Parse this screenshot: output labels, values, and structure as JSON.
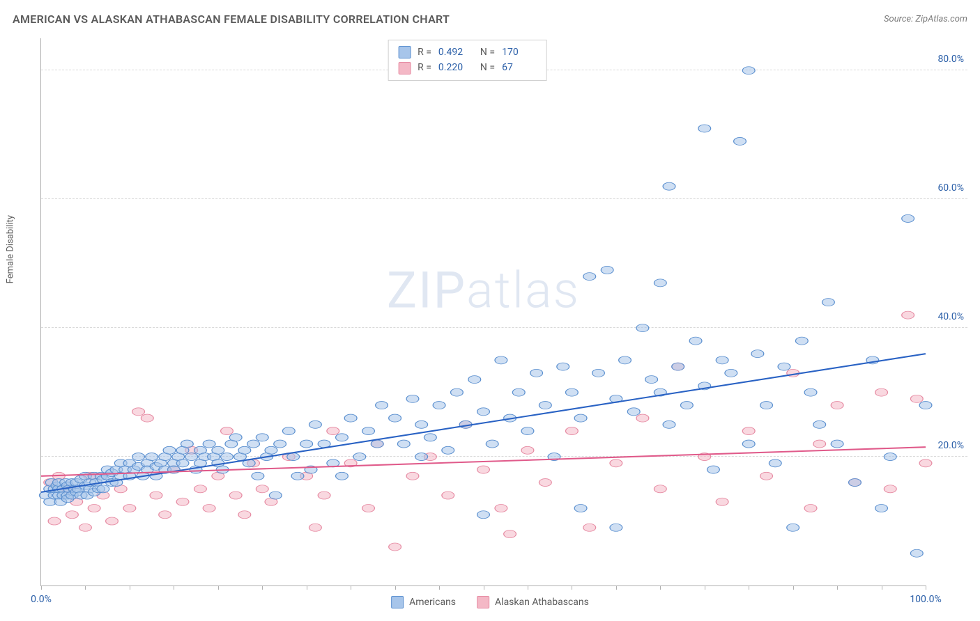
{
  "title": "AMERICAN VS ALASKAN ATHABASCAN FEMALE DISABILITY CORRELATION CHART",
  "source": "Source: ZipAtlas.com",
  "y_axis_label": "Female Disability",
  "watermark_a": "ZIP",
  "watermark_b": "atlas",
  "chart": {
    "type": "scatter",
    "xlim": [
      0,
      100
    ],
    "ylim": [
      0,
      85
    ],
    "x_ticks": [
      0,
      5,
      10,
      15,
      20,
      25,
      30,
      35,
      40,
      45,
      50,
      55,
      60,
      65,
      70,
      75,
      80,
      85,
      90,
      95,
      100
    ],
    "x_tick_labels": [
      {
        "pos": 0,
        "label": "0.0%"
      },
      {
        "pos": 100,
        "label": "100.0%"
      }
    ],
    "y_grid": [
      20,
      40,
      60,
      80
    ],
    "y_tick_labels": [
      {
        "pos": 20,
        "label": "20.0%"
      },
      {
        "pos": 40,
        "label": "40.0%"
      },
      {
        "pos": 60,
        "label": "60.0%"
      },
      {
        "pos": 80,
        "label": "80.0%"
      }
    ],
    "background_color": "#ffffff",
    "grid_color": "#d8d8d8",
    "axis_color": "#b0b0b0",
    "marker_radius": 7,
    "marker_opacity": 0.55,
    "line_width": 2,
    "series": [
      {
        "name": "Americans",
        "color_fill": "#a7c5ea",
        "color_stroke": "#5a8fcf",
        "line_color": "#2962c4",
        "R": "0.492",
        "N": "170",
        "trend": {
          "x1": 0,
          "y1": 14.5,
          "x2": 100,
          "y2": 36
        },
        "points": [
          [
            0.5,
            14
          ],
          [
            1,
            15
          ],
          [
            1,
            13
          ],
          [
            1.2,
            16
          ],
          [
            1.5,
            14
          ],
          [
            1.5,
            15
          ],
          [
            1.8,
            15.5
          ],
          [
            2,
            14
          ],
          [
            2,
            15
          ],
          [
            2,
            16
          ],
          [
            2.2,
            13
          ],
          [
            2.5,
            15
          ],
          [
            2.5,
            14
          ],
          [
            2.8,
            16
          ],
          [
            3,
            14
          ],
          [
            3,
            15.5
          ],
          [
            3,
            13.5
          ],
          [
            3.2,
            15
          ],
          [
            3.5,
            14
          ],
          [
            3.5,
            16
          ],
          [
            3.8,
            15
          ],
          [
            4,
            16
          ],
          [
            4,
            14.5
          ],
          [
            4.2,
            15
          ],
          [
            4.5,
            14
          ],
          [
            4.5,
            16.5
          ],
          [
            5,
            15.5
          ],
          [
            5,
            17
          ],
          [
            5.2,
            14
          ],
          [
            5.5,
            15
          ],
          [
            5.5,
            16
          ],
          [
            6,
            17
          ],
          [
            6,
            14.5
          ],
          [
            6.2,
            16
          ],
          [
            6.5,
            15
          ],
          [
            6.8,
            17
          ],
          [
            7,
            16.5
          ],
          [
            7,
            15
          ],
          [
            7.5,
            17
          ],
          [
            7.5,
            18
          ],
          [
            8,
            16
          ],
          [
            8,
            17.5
          ],
          [
            8.5,
            18
          ],
          [
            8.5,
            16
          ],
          [
            9,
            17
          ],
          [
            9,
            19
          ],
          [
            9.5,
            18
          ],
          [
            10,
            17
          ],
          [
            10,
            19
          ],
          [
            10.5,
            18
          ],
          [
            11,
            18.5
          ],
          [
            11,
            20
          ],
          [
            11.5,
            17
          ],
          [
            12,
            19
          ],
          [
            12,
            18
          ],
          [
            12.5,
            20
          ],
          [
            13,
            18.5
          ],
          [
            13,
            17
          ],
          [
            13.5,
            19
          ],
          [
            14,
            18
          ],
          [
            14,
            20
          ],
          [
            14.5,
            21
          ],
          [
            15,
            19
          ],
          [
            15,
            18
          ],
          [
            15.5,
            20
          ],
          [
            16,
            21
          ],
          [
            16,
            19
          ],
          [
            16.5,
            22
          ],
          [
            17,
            20
          ],
          [
            17.5,
            18
          ],
          [
            18,
            21
          ],
          [
            18,
            19
          ],
          [
            18.5,
            20
          ],
          [
            19,
            22
          ],
          [
            19.5,
            20
          ],
          [
            20,
            21
          ],
          [
            20,
            19
          ],
          [
            20.5,
            18
          ],
          [
            21,
            20
          ],
          [
            21.5,
            22
          ],
          [
            22,
            23
          ],
          [
            22.5,
            20
          ],
          [
            23,
            21
          ],
          [
            23.5,
            19
          ],
          [
            24,
            22
          ],
          [
            24.5,
            17
          ],
          [
            25,
            23
          ],
          [
            25.5,
            20
          ],
          [
            26,
            21
          ],
          [
            26.5,
            14
          ],
          [
            27,
            22
          ],
          [
            28,
            24
          ],
          [
            28.5,
            20
          ],
          [
            29,
            17
          ],
          [
            30,
            22
          ],
          [
            30.5,
            18
          ],
          [
            31,
            25
          ],
          [
            32,
            22
          ],
          [
            33,
            19
          ],
          [
            34,
            23
          ],
          [
            34,
            17
          ],
          [
            35,
            26
          ],
          [
            36,
            20
          ],
          [
            37,
            24
          ],
          [
            38,
            22
          ],
          [
            38.5,
            28
          ],
          [
            40,
            26
          ],
          [
            41,
            22
          ],
          [
            42,
            29
          ],
          [
            43,
            20
          ],
          [
            43,
            25
          ],
          [
            44,
            23
          ],
          [
            45,
            28
          ],
          [
            46,
            21
          ],
          [
            47,
            30
          ],
          [
            48,
            25
          ],
          [
            49,
            32
          ],
          [
            50,
            27
          ],
          [
            50,
            11
          ],
          [
            51,
            22
          ],
          [
            52,
            35
          ],
          [
            53,
            26
          ],
          [
            54,
            30
          ],
          [
            55,
            24
          ],
          [
            56,
            33
          ],
          [
            57,
            28
          ],
          [
            58,
            20
          ],
          [
            59,
            34
          ],
          [
            60,
            30
          ],
          [
            61,
            26
          ],
          [
            61,
            12
          ],
          [
            62,
            48
          ],
          [
            63,
            33
          ],
          [
            64,
            49
          ],
          [
            65,
            29
          ],
          [
            65,
            9
          ],
          [
            66,
            35
          ],
          [
            67,
            27
          ],
          [
            68,
            40
          ],
          [
            69,
            32
          ],
          [
            70,
            30
          ],
          [
            70,
            47
          ],
          [
            71,
            25
          ],
          [
            71,
            62
          ],
          [
            72,
            34
          ],
          [
            73,
            28
          ],
          [
            74,
            38
          ],
          [
            75,
            31
          ],
          [
            75,
            71
          ],
          [
            76,
            18
          ],
          [
            77,
            35
          ],
          [
            78,
            33
          ],
          [
            79,
            69
          ],
          [
            80,
            80
          ],
          [
            80,
            22
          ],
          [
            81,
            36
          ],
          [
            82,
            28
          ],
          [
            83,
            19
          ],
          [
            84,
            34
          ],
          [
            85,
            9
          ],
          [
            86,
            38
          ],
          [
            87,
            30
          ],
          [
            88,
            25
          ],
          [
            89,
            44
          ],
          [
            90,
            22
          ],
          [
            92,
            16
          ],
          [
            94,
            35
          ],
          [
            95,
            12
          ],
          [
            96,
            20
          ],
          [
            98,
            57
          ],
          [
            99,
            5
          ],
          [
            100,
            28
          ]
        ]
      },
      {
        "name": "Alaskan Athabascans",
        "color_fill": "#f4b8c6",
        "color_stroke": "#e68aa2",
        "line_color": "#e05a8a",
        "R": "0.220",
        "N": "67",
        "trend": {
          "x1": 0,
          "y1": 17,
          "x2": 100,
          "y2": 21.5
        },
        "points": [
          [
            1,
            16
          ],
          [
            1.5,
            10
          ],
          [
            2,
            17
          ],
          [
            3,
            15
          ],
          [
            3.5,
            11
          ],
          [
            4,
            13
          ],
          [
            5,
            9
          ],
          [
            5.5,
            17
          ],
          [
            6,
            12
          ],
          [
            7,
            14
          ],
          [
            8,
            10
          ],
          [
            9,
            15
          ],
          [
            10,
            12
          ],
          [
            11,
            27
          ],
          [
            12,
            26
          ],
          [
            13,
            14
          ],
          [
            14,
            11
          ],
          [
            15,
            18
          ],
          [
            16,
            13
          ],
          [
            17,
            21
          ],
          [
            18,
            15
          ],
          [
            19,
            12
          ],
          [
            20,
            17
          ],
          [
            21,
            24
          ],
          [
            22,
            14
          ],
          [
            23,
            11
          ],
          [
            24,
            19
          ],
          [
            25,
            15
          ],
          [
            26,
            13
          ],
          [
            28,
            20
          ],
          [
            30,
            17
          ],
          [
            31,
            9
          ],
          [
            32,
            14
          ],
          [
            33,
            24
          ],
          [
            35,
            19
          ],
          [
            37,
            12
          ],
          [
            38,
            22
          ],
          [
            40,
            6
          ],
          [
            42,
            17
          ],
          [
            44,
            20
          ],
          [
            46,
            14
          ],
          [
            48,
            25
          ],
          [
            50,
            18
          ],
          [
            52,
            12
          ],
          [
            53,
            8
          ],
          [
            55,
            21
          ],
          [
            57,
            16
          ],
          [
            60,
            24
          ],
          [
            62,
            9
          ],
          [
            65,
            19
          ],
          [
            68,
            26
          ],
          [
            70,
            15
          ],
          [
            72,
            34
          ],
          [
            75,
            20
          ],
          [
            77,
            13
          ],
          [
            80,
            24
          ],
          [
            82,
            17
          ],
          [
            85,
            33
          ],
          [
            87,
            12
          ],
          [
            88,
            22
          ],
          [
            90,
            28
          ],
          [
            92,
            16
          ],
          [
            95,
            30
          ],
          [
            96,
            15
          ],
          [
            98,
            42
          ],
          [
            99,
            29
          ],
          [
            100,
            19
          ]
        ]
      }
    ]
  },
  "legend_bottom": [
    {
      "label": "Americans",
      "fill": "#a7c5ea",
      "stroke": "#5a8fcf"
    },
    {
      "label": "Alaskan Athabascans",
      "fill": "#f4b8c6",
      "stroke": "#e68aa2"
    }
  ]
}
